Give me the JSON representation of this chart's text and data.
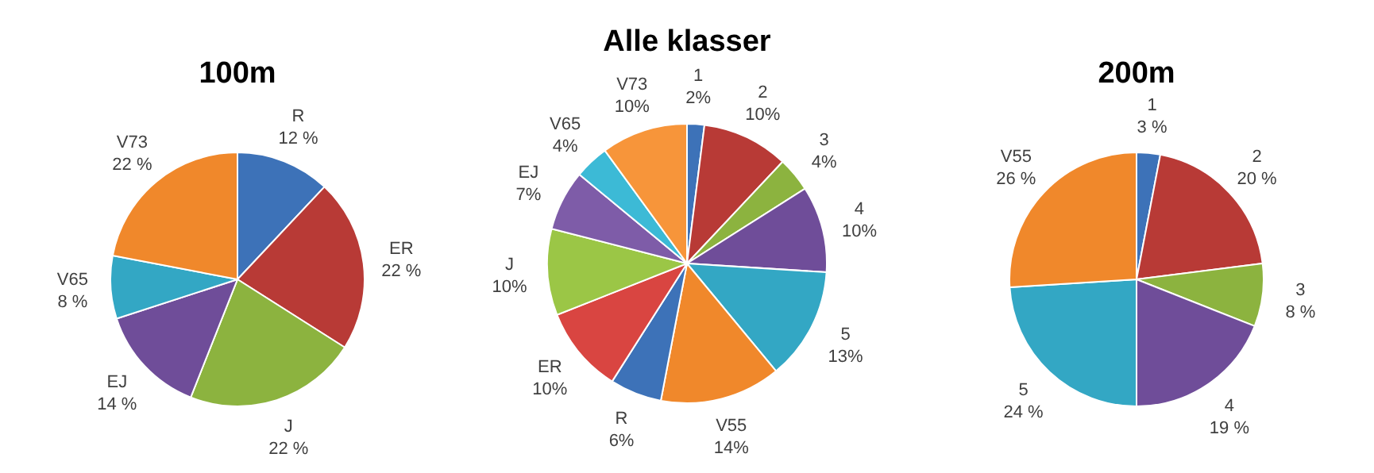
{
  "chart_data": [
    {
      "type": "pie",
      "title": "100m",
      "categories": [
        "R",
        "ER",
        "J",
        "EJ",
        "V65",
        "V73"
      ],
      "values": [
        12,
        22,
        22,
        14,
        8,
        22
      ],
      "value_labels": [
        "12 %",
        "22 %",
        "22 %",
        "14 %",
        "8 %",
        "22 %"
      ],
      "colors": [
        "#3d72b8",
        "#b83a36",
        "#8cb33f",
        "#6f4d99",
        "#33a7c4",
        "#f0882b"
      ]
    },
    {
      "type": "pie",
      "title": "Alle klasser",
      "categories": [
        "1",
        "2",
        "3",
        "4",
        "5",
        "V55",
        "R",
        "ER",
        "J",
        "EJ",
        "V65",
        "V73"
      ],
      "values": [
        2,
        10,
        4,
        10,
        13,
        14,
        6,
        10,
        10,
        7,
        4,
        10
      ],
      "value_labels": [
        "2%",
        "10%",
        "4%",
        "10%",
        "13%",
        "14%",
        "6%",
        "10%",
        "10%",
        "7%",
        "4%",
        "10%"
      ],
      "colors": [
        "#3d72b8",
        "#b83a36",
        "#8cb33f",
        "#6f4d99",
        "#33a7c4",
        "#f0882b",
        "#3d72b8",
        "#d94541",
        "#9bc646",
        "#7e5ca8",
        "#3cbad6",
        "#f7953a"
      ]
    },
    {
      "type": "pie",
      "title": "200m",
      "categories": [
        "1",
        "2",
        "3",
        "4",
        "5",
        "V55"
      ],
      "values": [
        3,
        20,
        8,
        19,
        24,
        26
      ],
      "value_labels": [
        "3 %",
        "20 %",
        "8 %",
        "19 %",
        "24 %",
        "26 %"
      ],
      "colors": [
        "#3d72b8",
        "#b83a36",
        "#8cb33f",
        "#6f4d99",
        "#33a7c4",
        "#f0882b"
      ]
    }
  ]
}
